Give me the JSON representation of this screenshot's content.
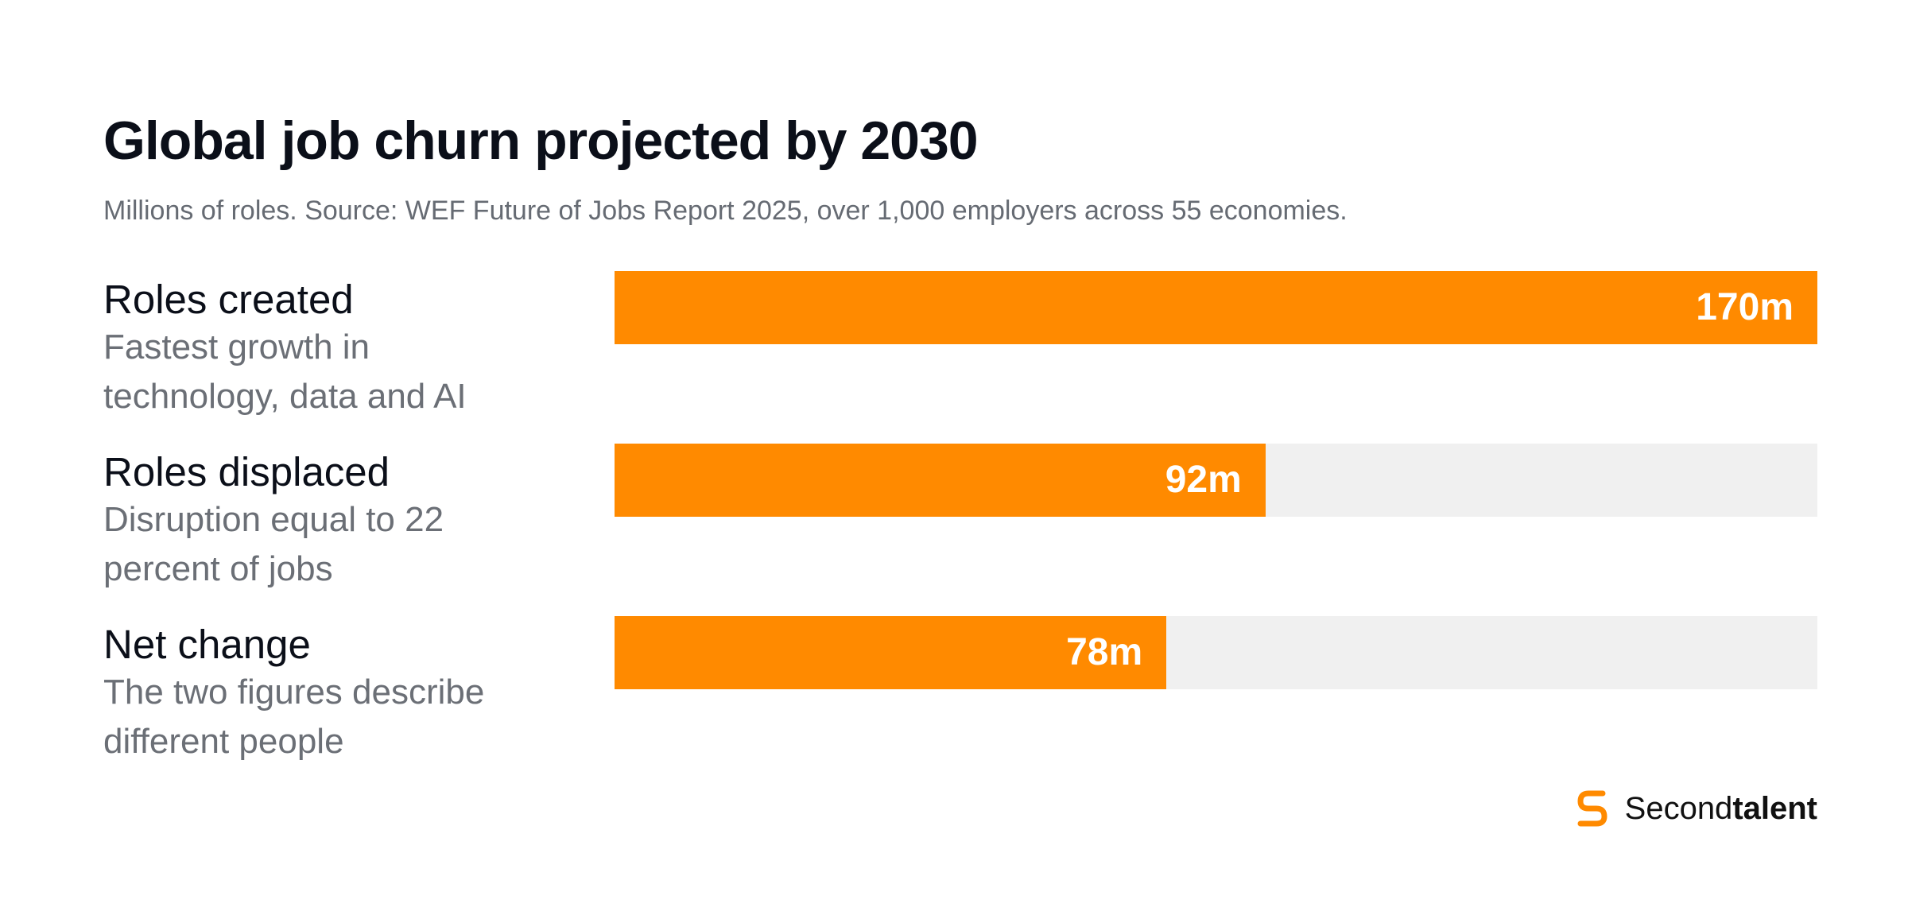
{
  "header": {
    "title": "Global job churn projected by 2030",
    "subtitle": "Millions of roles. Source: WEF Future of Jobs Report 2025, over 1,000 employers across 55 economies."
  },
  "rows": [
    {
      "label": "Roles created",
      "description": "Fastest growth in technology, data and AI",
      "value_label": "170m"
    },
    {
      "label": "Roles displaced",
      "description": "Disruption equal to 22 percent of jobs",
      "value_label": "92m"
    },
    {
      "label": "Net change",
      "description": "The two figures describe different people",
      "value_label": "78m"
    }
  ],
  "brand": {
    "name_regular": "Second",
    "name_bold": "talent",
    "icon": "secondtalent-logo-icon"
  },
  "colors": {
    "bar": "#ff8a00",
    "track": "#f0f0f0",
    "title": "#0b0f19",
    "subtitle": "#666b73"
  },
  "chart_data": {
    "type": "bar",
    "orientation": "horizontal",
    "categories": [
      "Roles created",
      "Roles displaced",
      "Net change"
    ],
    "values": [
      170,
      92,
      78
    ],
    "unit": "m",
    "xlim": [
      0,
      170
    ],
    "grid": false,
    "legend": "none",
    "title": "Global job churn projected by 2030",
    "subtitle": "Millions of roles. Source: WEF Future of Jobs Report 2025, over 1,000 employers across 55 economies."
  }
}
